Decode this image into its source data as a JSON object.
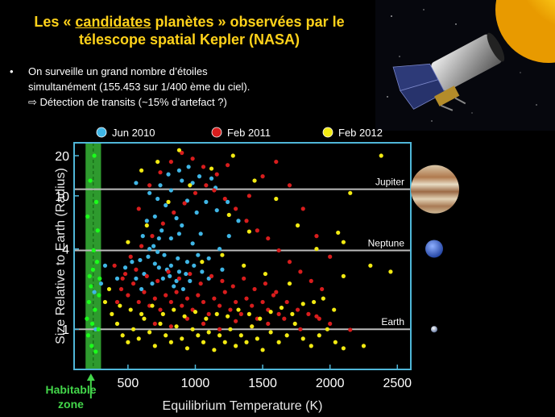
{
  "slide": {
    "title_pre": "Les « ",
    "title_underlined": "candidates",
    "title_post": " planètes » observées par le",
    "title_line2": "télescope spatial Kepler (NASA)",
    "bullet_char": "•",
    "bullet_line1": "On surveille un grand nombre d’étoiles",
    "bullet_line2": "simultanément (155.453 sur 1/400 ème du ciel).",
    "bullet_line3": "⇨ Détection de transits (~15% d’artefact ?)",
    "habitable_line1": "Habitable",
    "habitable_line2": "zone"
  },
  "colors": {
    "title": "#ffd21a",
    "jun2010": "#3fb6e6",
    "feb2011": "#d81d1d",
    "feb2012": "#f2ea12",
    "habitable": "#2e9a2e",
    "habitable_label": "#43d64a",
    "frame": "#4fb6d8",
    "ref_lines": "#bbbbbb"
  },
  "chart_data": {
    "type": "scatter",
    "xlabel": "Equilibrium Temperature (K)",
    "ylabel": "Size Relative to Earth (Radius)",
    "xlim": [
      100,
      2600
    ],
    "ylim": [
      0.5,
      25
    ],
    "yscale": "log",
    "xticks": [
      500,
      1000,
      1500,
      2000,
      2500
    ],
    "xtick_labels": [
      "500",
      "1000",
      "1500",
      "2000",
      "2500"
    ],
    "yticks": [
      1,
      4,
      10,
      20
    ],
    "ytick_labels": [
      "1",
      "4",
      "10",
      "20"
    ],
    "habitable_zone": [
      185,
      300
    ],
    "reference_lines": [
      {
        "name": "Jupiter",
        "y": 11.2
      },
      {
        "name": "Neptune",
        "y": 3.9
      },
      {
        "name": "Earth",
        "y": 1.0
      }
    ],
    "legend": [
      {
        "name": "Jun 2010",
        "color": "#3fb6e6"
      },
      {
        "name": "Feb 2011",
        "color": "#d81d1d"
      },
      {
        "name": "Feb 2012",
        "color": "#f2ea12"
      }
    ],
    "series": [
      {
        "name": "Jun 2010",
        "color": "#3fb6e6",
        "points": [
          [
            620,
            2.6
          ],
          [
            700,
            3.1
          ],
          [
            760,
            2.4
          ],
          [
            820,
            3.0
          ],
          [
            880,
            2.7
          ],
          [
            940,
            3.2
          ],
          [
            680,
            2.2
          ],
          [
            730,
            2.9
          ],
          [
            810,
            2.5
          ],
          [
            870,
            3.4
          ],
          [
            650,
            3.5
          ],
          [
            720,
            3.8
          ],
          [
            790,
            2.8
          ],
          [
            860,
            2.3
          ],
          [
            930,
            2.6
          ],
          [
            990,
            3.0
          ],
          [
            1050,
            2.7
          ],
          [
            600,
            2.0
          ],
          [
            560,
            2.4
          ],
          [
            690,
            4.2
          ],
          [
            750,
            5.5
          ],
          [
            820,
            4.8
          ],
          [
            900,
            6.0
          ],
          [
            980,
            4.4
          ],
          [
            1040,
            5.2
          ],
          [
            700,
            7.0
          ],
          [
            780,
            8.5
          ],
          [
            860,
            6.8
          ],
          [
            940,
            9.2
          ],
          [
            1010,
            7.5
          ],
          [
            660,
            10.5
          ],
          [
            740,
            12.0
          ],
          [
            820,
            11.0
          ],
          [
            900,
            13.0
          ],
          [
            980,
            12.5
          ],
          [
            1080,
            9.0
          ],
          [
            1150,
            11.5
          ],
          [
            610,
            5.0
          ],
          [
            640,
            6.5
          ],
          [
            720,
            9.5
          ],
          [
            800,
            14.5
          ],
          [
            880,
            15.5
          ],
          [
            950,
            16.5
          ],
          [
            1030,
            14.0
          ],
          [
            1120,
            13.5
          ],
          [
            560,
            12.5
          ],
          [
            590,
            3.3
          ],
          [
            770,
            3.6
          ],
          [
            840,
            2.1
          ],
          [
            910,
            2.0
          ],
          [
            1100,
            3.4
          ],
          [
            1180,
            4.0
          ],
          [
            1250,
            5.0
          ],
          [
            1320,
            6.5
          ],
          [
            1100,
            2.4
          ],
          [
            1200,
            2.8
          ],
          [
            300,
            2.2
          ],
          [
            250,
            1.9
          ],
          [
            260,
            1.0
          ],
          [
            330,
            3.0
          ],
          [
            420,
            2.4
          ],
          [
            480,
            2.9
          ],
          [
            530,
            3.2
          ],
          [
            960,
            2.3
          ],
          [
            1020,
            3.6
          ],
          [
            730,
            4.8
          ],
          [
            660,
            4.0
          ],
          [
            880,
            5.2
          ],
          [
            1160,
            7.8
          ],
          [
            1240,
            9.0
          ]
        ]
      },
      {
        "name": "Feb 2011",
        "color": "#d81d1d",
        "points": [
          [
            450,
            2.0
          ],
          [
            500,
            1.8
          ],
          [
            540,
            2.2
          ],
          [
            580,
            1.6
          ],
          [
            620,
            1.9
          ],
          [
            660,
            1.5
          ],
          [
            700,
            1.7
          ],
          [
            740,
            1.4
          ],
          [
            780,
            1.8
          ],
          [
            820,
            1.6
          ],
          [
            860,
            1.9
          ],
          [
            900,
            1.5
          ],
          [
            940,
            1.7
          ],
          [
            980,
            1.4
          ],
          [
            1020,
            1.8
          ],
          [
            1060,
            1.6
          ],
          [
            1100,
            1.3
          ],
          [
            1140,
            1.7
          ],
          [
            1180,
            1.5
          ],
          [
            1220,
            1.9
          ],
          [
            1260,
            1.4
          ],
          [
            1300,
            1.6
          ],
          [
            1340,
            1.3
          ],
          [
            1380,
            1.7
          ],
          [
            1420,
            1.5
          ],
          [
            1460,
            1.2
          ],
          [
            1500,
            1.6
          ],
          [
            1540,
            1.4
          ],
          [
            1580,
            1.8
          ],
          [
            1620,
            1.3
          ],
          [
            480,
            2.6
          ],
          [
            560,
            2.8
          ],
          [
            640,
            2.5
          ],
          [
            720,
            2.3
          ],
          [
            800,
            2.7
          ],
          [
            880,
            2.4
          ],
          [
            960,
            2.6
          ],
          [
            1040,
            2.2
          ],
          [
            1120,
            2.5
          ],
          [
            1200,
            2.3
          ],
          [
            1280,
            2.1
          ],
          [
            1360,
            2.4
          ],
          [
            1440,
            2.0
          ],
          [
            1520,
            2.2
          ],
          [
            1600,
            1.9
          ],
          [
            1680,
            1.6
          ],
          [
            1760,
            1.4
          ],
          [
            1840,
            1.3
          ],
          [
            1920,
            1.2
          ],
          [
            2000,
            1.1
          ],
          [
            520,
            3.5
          ],
          [
            600,
            4.2
          ],
          [
            680,
            5.0
          ],
          [
            760,
            6.2
          ],
          [
            840,
            7.5
          ],
          [
            920,
            8.8
          ],
          [
            1000,
            10.5
          ],
          [
            1080,
            12.0
          ],
          [
            1160,
            14.5
          ],
          [
            1240,
            17.0
          ],
          [
            580,
            8.0
          ],
          [
            660,
            12.0
          ],
          [
            740,
            15.0
          ],
          [
            820,
            18.0
          ],
          [
            900,
            21.0
          ],
          [
            980,
            19.0
          ],
          [
            1060,
            16.5
          ],
          [
            1140,
            11.0
          ],
          [
            1220,
            9.5
          ],
          [
            1300,
            8.0
          ],
          [
            1380,
            6.5
          ],
          [
            1460,
            5.5
          ],
          [
            1540,
            4.8
          ],
          [
            1620,
            3.9
          ],
          [
            1700,
            3.2
          ],
          [
            1780,
            2.7
          ],
          [
            1860,
            2.3
          ],
          [
            1940,
            2.0
          ],
          [
            700,
            1.1
          ],
          [
            820,
            1.05
          ],
          [
            940,
            1.2
          ],
          [
            1060,
            1.1
          ],
          [
            1180,
            1.0
          ],
          [
            1300,
            1.15
          ],
          [
            1420,
            1.05
          ],
          [
            1540,
            1.1
          ],
          [
            1660,
            1.2
          ],
          [
            1780,
            1.0
          ],
          [
            2150,
            0.99
          ],
          [
            1900,
            1.25
          ],
          [
            400,
            3.0
          ],
          [
            420,
            1.6
          ],
          [
            460,
            2.4
          ],
          [
            1400,
            10.0
          ],
          [
            1500,
            14.0
          ],
          [
            1600,
            18.0
          ],
          [
            1700,
            12.0
          ],
          [
            1800,
            8.0
          ],
          [
            1900,
            5.0
          ],
          [
            2000,
            3.5
          ]
        ]
      },
      {
        "name": "Feb 2012",
        "color": "#f2ea12",
        "points": [
          [
            330,
            1.6
          ],
          [
            380,
            1.3
          ],
          [
            420,
            1.1
          ],
          [
            460,
            0.9
          ],
          [
            500,
            0.8
          ],
          [
            540,
            1.0
          ],
          [
            580,
            0.85
          ],
          [
            620,
            1.2
          ],
          [
            660,
            0.95
          ],
          [
            700,
            0.75
          ],
          [
            740,
            1.1
          ],
          [
            780,
            0.9
          ],
          [
            820,
            0.8
          ],
          [
            860,
            1.05
          ],
          [
            900,
            0.85
          ],
          [
            940,
            0.72
          ],
          [
            980,
            1.0
          ],
          [
            1020,
            0.9
          ],
          [
            1060,
            0.8
          ],
          [
            1100,
            0.95
          ],
          [
            1140,
            0.7
          ],
          [
            1180,
            0.9
          ],
          [
            1220,
            0.8
          ],
          [
            1260,
            1.0
          ],
          [
            1300,
            0.75
          ],
          [
            1340,
            0.9
          ],
          [
            1380,
            0.8
          ],
          [
            1420,
            1.05
          ],
          [
            1460,
            0.85
          ],
          [
            1500,
            0.7
          ],
          [
            1560,
            0.95
          ],
          [
            1620,
            0.8
          ],
          [
            1680,
            0.9
          ],
          [
            1740,
            1.1
          ],
          [
            1800,
            0.85
          ],
          [
            1860,
            0.75
          ],
          [
            1920,
            0.9
          ],
          [
            1980,
            1.0
          ],
          [
            2040,
            0.8
          ],
          [
            2100,
            0.72
          ],
          [
            360,
            2.0
          ],
          [
            440,
            1.5
          ],
          [
            520,
            1.4
          ],
          [
            600,
            1.3
          ],
          [
            680,
            1.5
          ],
          [
            760,
            1.3
          ],
          [
            840,
            1.4
          ],
          [
            920,
            1.25
          ],
          [
            1000,
            1.35
          ],
          [
            1080,
            1.2
          ],
          [
            1160,
            1.3
          ],
          [
            1240,
            1.25
          ],
          [
            1320,
            1.4
          ],
          [
            1400,
            1.3
          ],
          [
            1480,
            1.2
          ],
          [
            1560,
            1.35
          ],
          [
            1640,
            1.45
          ],
          [
            1720,
            1.3
          ],
          [
            1800,
            1.55
          ],
          [
            1880,
            1.6
          ],
          [
            500,
            4.5
          ],
          [
            640,
            6.0
          ],
          [
            800,
            9.0
          ],
          [
            960,
            12.0
          ],
          [
            1120,
            16.0
          ],
          [
            1280,
            20.0
          ],
          [
            1440,
            13.0
          ],
          [
            1600,
            9.5
          ],
          [
            1760,
            6.0
          ],
          [
            1900,
            4.0
          ],
          [
            2100,
            2.5
          ],
          [
            2300,
            3.0
          ],
          [
            2450,
            2.7
          ],
          [
            2060,
            5.3
          ],
          [
            2100,
            4.5
          ],
          [
            2150,
            10.5
          ],
          [
            2380,
            20.0
          ],
          [
            720,
            18.0
          ],
          [
            880,
            22.0
          ],
          [
            600,
            15.5
          ],
          [
            2250,
            0.75
          ],
          [
            1950,
            1.7
          ],
          [
            2030,
            1.4
          ],
          [
            1700,
            2.2
          ],
          [
            1520,
            2.6
          ],
          [
            1360,
            3.0
          ],
          [
            1200,
            3.6
          ],
          [
            1050,
            3.2
          ],
          [
            1250,
            7.2
          ],
          [
            1400,
            5.4
          ]
        ]
      },
      {
        "name": "Habitable zone",
        "color": "#1bff1b",
        "points": [
          [
            195,
            1.2
          ],
          [
            210,
            1.6
          ],
          [
            225,
            2.1
          ],
          [
            240,
            2.8
          ],
          [
            255,
            1.4
          ],
          [
            270,
            3.2
          ],
          [
            285,
            1.8
          ],
          [
            205,
            0.9
          ],
          [
            230,
            0.75
          ],
          [
            260,
            0.68
          ],
          [
            280,
            1.0
          ],
          [
            215,
            2.5
          ],
          [
            245,
            3.9
          ],
          [
            275,
            5.5
          ],
          [
            200,
            7.0
          ],
          [
            265,
            9.0
          ],
          [
            220,
            13.0
          ],
          [
            250,
            20.0
          ],
          [
            290,
            2.4
          ],
          [
            235,
            1.1
          ]
        ]
      }
    ]
  }
}
